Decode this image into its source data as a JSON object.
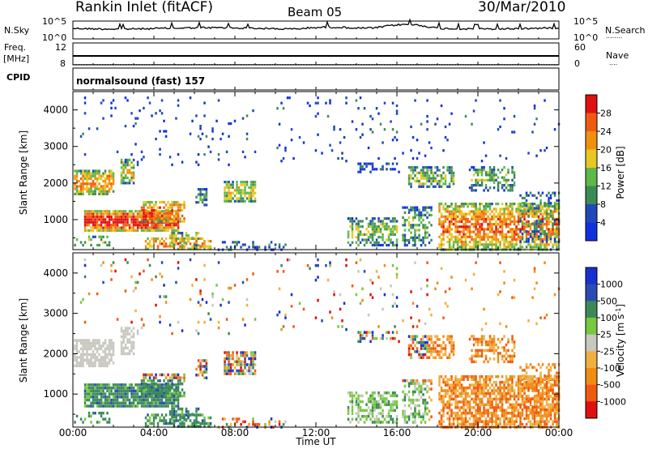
{
  "header": {
    "site": "Rankin Inlet (fitACF)",
    "beam": "Beam 05",
    "date": "30/Mar/2010"
  },
  "noise_panel": {
    "left_label": "N.Sky",
    "right_label": "N.Search",
    "left_ticks": [
      "10^5",
      "10^0"
    ],
    "right_ticks": [
      "10^5",
      "10^0"
    ]
  },
  "freq_panel": {
    "left_label_1": "Freq.",
    "left_label_2": "[MHz]",
    "left_ticks": [
      "12",
      "8"
    ],
    "right_label": "Nave",
    "right_ticks": [
      "60",
      "0"
    ]
  },
  "cpid_panel": {
    "label": "CPID",
    "text": "normalsound (fast) 157"
  },
  "colors": {
    "power_scale": [
      "#1030e0",
      "#2048b8",
      "#3c8a54",
      "#5cb848",
      "#e8c820",
      "#f09010",
      "#f05a10",
      "#e01010"
    ],
    "velocity_scale": [
      "#e01010",
      "#f05a10",
      "#f08c14",
      "#f0b040",
      "#c8c8c0",
      "#78c840",
      "#3a8a58",
      "#2a4cb0",
      "#1830d0"
    ]
  },
  "chart_data": [
    {
      "type": "heatmap",
      "panel": "power",
      "ylabel": "Slant Range [km]",
      "y_ticks": [
        "4000",
        "3000",
        "2000",
        "1000"
      ],
      "ylim": [
        180,
        4500
      ],
      "xlim_hours": [
        0,
        24
      ],
      "colorbar_label": "Power [dB]",
      "colorbar_ticks": [
        "28",
        "24",
        "20",
        "16",
        "12",
        "8",
        "4"
      ],
      "clim": [
        0,
        32
      ]
    },
    {
      "type": "heatmap",
      "panel": "velocity",
      "ylabel": "Slant Range [km]",
      "y_ticks": [
        "4000",
        "3000",
        "2000",
        "1000"
      ],
      "ylim": [
        180,
        4500
      ],
      "xlim_hours": [
        0,
        24
      ],
      "colorbar_label": "Velocity [m s^-1]",
      "colorbar_ticks": [
        "1000",
        "500",
        "100",
        "25",
        "-25",
        "-100",
        "-500",
        "-1000"
      ]
    }
  ],
  "x_axis": {
    "label": "Time UT",
    "ticks": [
      "00:00",
      "04:00",
      "08:00",
      "12:00",
      "16:00",
      "20:00",
      "00:00"
    ]
  }
}
